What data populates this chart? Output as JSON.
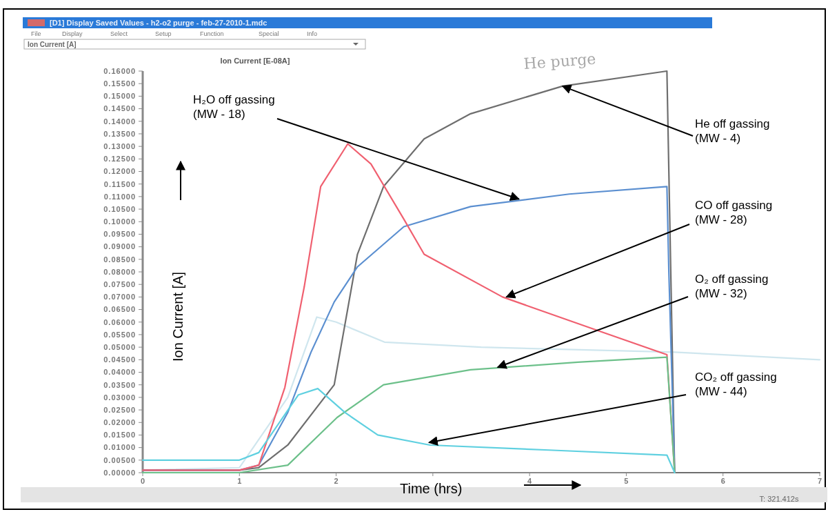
{
  "chart_data": {
    "type": "line",
    "title": "[D1] Display Saved Values - h2-o2 purge - feb-27-2010-1.mdc",
    "subtitle": "Ion Current [A]",
    "xlabel": "Time (hrs)",
    "ylabel": "Ion Current [A]",
    "xlim": [
      0,
      7
    ],
    "xticks": [
      0,
      1,
      2,
      {
        "value": 3,
        "label": null
      },
      4,
      5,
      6,
      7
    ],
    "ylim": [
      0,
      0.16
    ],
    "yticks": [
      {
        "value": 0,
        "label": "0.00000"
      },
      {
        "value": 0.005,
        "label": "0.00500"
      },
      {
        "value": 0.01,
        "label": "0.01000"
      },
      {
        "value": 0.015,
        "label": "0.01500"
      },
      {
        "value": 0.02,
        "label": "0.02000"
      },
      {
        "value": 0.025,
        "label": "0.02500"
      },
      {
        "value": 0.03,
        "label": "0.03000"
      },
      {
        "value": 0.035,
        "label": "0.03500"
      },
      {
        "value": 0.04,
        "label": "0.04000"
      },
      {
        "value": 0.045,
        "label": "0.04500"
      },
      {
        "value": 0.05,
        "label": "0.05000"
      },
      {
        "value": 0.055,
        "label": "0.05500"
      },
      {
        "value": 0.06,
        "label": "0.06000"
      },
      {
        "value": 0.065,
        "label": "0.06500"
      },
      {
        "value": 0.07,
        "label": "0.07000"
      },
      {
        "value": 0.075,
        "label": "0.07500"
      },
      {
        "value": 0.08,
        "label": "0.08000"
      },
      {
        "value": 0.085,
        "label": "0.08500"
      },
      {
        "value": 0.09,
        "label": "0.09000"
      },
      {
        "value": 0.095,
        "label": "0.09500"
      },
      {
        "value": 0.1,
        "label": "0.10000"
      },
      {
        "value": 0.105,
        "label": "0.10500"
      },
      {
        "value": 0.11,
        "label": "0.11000"
      },
      {
        "value": 0.115,
        "label": "0.11500"
      },
      {
        "value": 0.12,
        "label": "0.12000"
      },
      {
        "value": 0.125,
        "label": "0.12500"
      },
      {
        "value": 0.13,
        "label": "0.13000"
      },
      {
        "value": 0.135,
        "label": "0.13500"
      },
      {
        "value": 0.14,
        "label": "0.14000"
      },
      {
        "value": 0.145,
        "label": "0.14500"
      },
      {
        "value": 0.15,
        "label": "0.15000"
      },
      {
        "value": 0.155,
        "label": "0.15500"
      },
      {
        "value": 0.16,
        "label": "0.16000"
      }
    ],
    "grid": false,
    "marker": "none",
    "line_style": "solid",
    "series": [
      {
        "color": "#cfe6ee",
        "x": [
          0,
          1,
          1.5,
          1.8,
          2,
          2.5,
          3.5,
          5.5,
          7
        ],
        "values": [
          0.001,
          0.002,
          0.03,
          0.062,
          0.06,
          0.052,
          0.05,
          0.048,
          0.045
        ]
      },
      {
        "color": "#6e6e6e",
        "x": [
          0,
          1,
          1.2,
          1.5,
          1.98,
          2.22,
          2.49,
          2.91,
          3.39,
          4.34,
          5.42,
          5.44,
          5.5,
          7
        ],
        "values": [
          0.001,
          0.001,
          0.002,
          0.011,
          0.035,
          0.087,
          0.114,
          0.133,
          0.143,
          0.154,
          0.16,
          0.12,
          0,
          0
        ]
      },
      {
        "color": "#5b8fd0",
        "x": [
          0,
          1,
          1.2,
          1.5,
          1.74,
          1.98,
          2.22,
          2.7,
          3.39,
          4.41,
          5.42,
          5.44,
          5.5
        ],
        "values": [
          0.001,
          0.001,
          0.003,
          0.024,
          0.048,
          0.068,
          0.082,
          0.098,
          0.106,
          0.111,
          0.114,
          0.08,
          0
        ]
      },
      {
        "color": "#f06070",
        "x": [
          0,
          1,
          1.2,
          1.47,
          1.67,
          1.84,
          2.12,
          2.36,
          2.7,
          2.91,
          3.72,
          4.75,
          5.42,
          5.5
        ],
        "values": [
          0.001,
          0.001,
          0.003,
          0.034,
          0.074,
          0.114,
          0.131,
          0.123,
          0.101,
          0.087,
          0.07,
          0.056,
          0.047,
          0
        ]
      },
      {
        "color": "#6cc08a",
        "x": [
          0,
          1,
          1.5,
          2.01,
          2.49,
          3.39,
          4.5,
          5.42,
          5.5
        ],
        "values": [
          0,
          0,
          0.003,
          0.022,
          0.035,
          0.041,
          0.044,
          0.046,
          0
        ]
      },
      {
        "color": "#5fd0e0",
        "x": [
          0,
          1,
          1.2,
          1.61,
          1.81,
          2.09,
          2.43,
          2.97,
          4.2,
          5.42,
          5.5
        ],
        "values": [
          0.005,
          0.005,
          0.008,
          0.031,
          0.0335,
          0.024,
          0.015,
          0.011,
          0.009,
          0.007,
          0
        ]
      }
    ],
    "annotations": [
      {
        "text": "He off gassing\n(MW - 4)",
        "x": 4.34,
        "y": 0.154
      },
      {
        "text": "H₂O off gassing\n(MW - 18)",
        "x": 3.89,
        "y": 0.109
      },
      {
        "text": "CO off gassing\n(MW - 28)",
        "x": 3.76,
        "y": 0.07
      },
      {
        "text": "O₂ off gassing\n(MW - 32)",
        "x": 3.67,
        "y": 0.042
      },
      {
        "text": "CO₂ off gassing\n(MW - 44)",
        "x": 2.96,
        "y": 0.012
      },
      "He purge",
      "Ion Current [E-08A]",
      "File",
      "Display",
      "Select",
      "Setup",
      "Function",
      "Special",
      "Info",
      "T: 321.412s"
    ]
  }
}
